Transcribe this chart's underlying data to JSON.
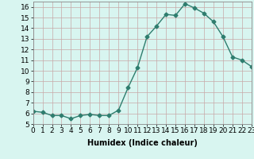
{
  "x": [
    0,
    1,
    2,
    3,
    4,
    5,
    6,
    7,
    8,
    9,
    10,
    11,
    12,
    13,
    14,
    15,
    16,
    17,
    18,
    19,
    20,
    21,
    22,
    23
  ],
  "y": [
    6.2,
    6.1,
    5.8,
    5.8,
    5.5,
    5.8,
    5.9,
    5.8,
    5.8,
    6.3,
    8.4,
    10.3,
    13.2,
    14.2,
    15.3,
    15.2,
    16.3,
    15.9,
    15.4,
    14.6,
    13.2,
    11.3,
    11.0,
    10.4
  ],
  "xlabel": "Humidex (Indice chaleur)",
  "xlim": [
    0,
    23
  ],
  "ylim": [
    5,
    16.5
  ],
  "yticks": [
    5,
    6,
    7,
    8,
    9,
    10,
    11,
    12,
    13,
    14,
    15,
    16
  ],
  "xticks": [
    0,
    1,
    2,
    3,
    4,
    5,
    6,
    7,
    8,
    9,
    10,
    11,
    12,
    13,
    14,
    15,
    16,
    17,
    18,
    19,
    20,
    21,
    22,
    23
  ],
  "line_color": "#2e7d6e",
  "marker": "D",
  "marker_size": 2.5,
  "background_color": "#d8f5f0",
  "grid_major_color": "#c8a8a8",
  "grid_minor_color": "#ddc8c8",
  "label_fontsize": 7,
  "tick_fontsize": 6.5
}
